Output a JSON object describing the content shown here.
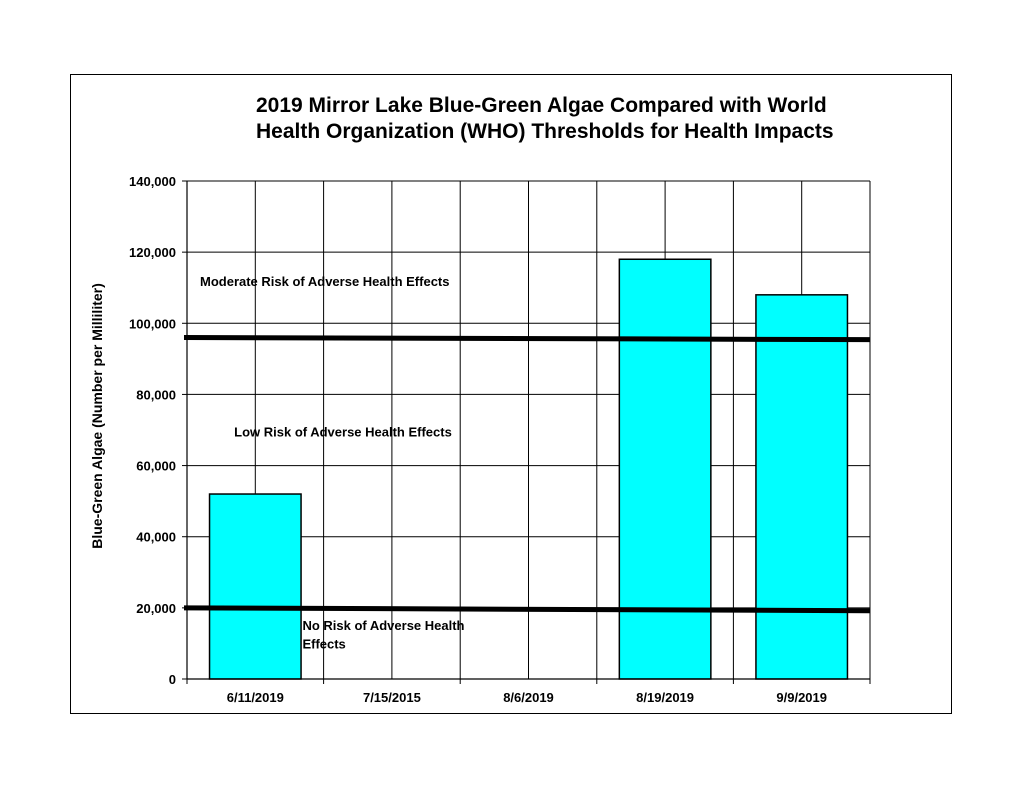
{
  "chart_data": {
    "type": "bar",
    "title_line1": "2019 Mirror Lake  Blue-Green Algae Compared with World",
    "title_line2": "Health Organization (WHO) Thresholds for Health Impacts",
    "ylabel": "Blue-Green Algae (Number per Milliliter)",
    "xlabel": "",
    "categories": [
      "6/11/2019",
      "7/15/2015",
      "8/6/2019",
      "8/19/2019",
      "9/9/2019"
    ],
    "values": [
      52000,
      null,
      null,
      118000,
      108000
    ],
    "ylim": [
      0,
      140000
    ],
    "yticks": [
      0,
      20000,
      40000,
      60000,
      80000,
      100000,
      120000,
      140000
    ],
    "ytick_labels": [
      "0",
      "20,000",
      "40,000",
      "60,000",
      "80,000",
      "100,000",
      "120,000",
      "140,000"
    ],
    "grid": true,
    "thresholds": [
      {
        "value": 20000,
        "y_end": 19200
      },
      {
        "value": 96000,
        "y_end": 95400
      }
    ],
    "annotations": [
      {
        "text": "Moderate Risk of Adverse Health Effects",
        "x_category": 0.0,
        "y": 110500
      },
      {
        "text": "Low Risk of Adverse Health Effects",
        "x_category": 0.25,
        "y": 68200
      },
      {
        "text": "No Risk of Adverse Health",
        "x_category": 0.75,
        "y": 13800
      },
      {
        "text": "Effects",
        "x_category": 0.75,
        "y": 8600
      }
    ],
    "colors": {
      "bar_fill": "#00ffff",
      "bar_stroke": "#000000",
      "threshold": "#000000",
      "grid": "#000000"
    }
  }
}
